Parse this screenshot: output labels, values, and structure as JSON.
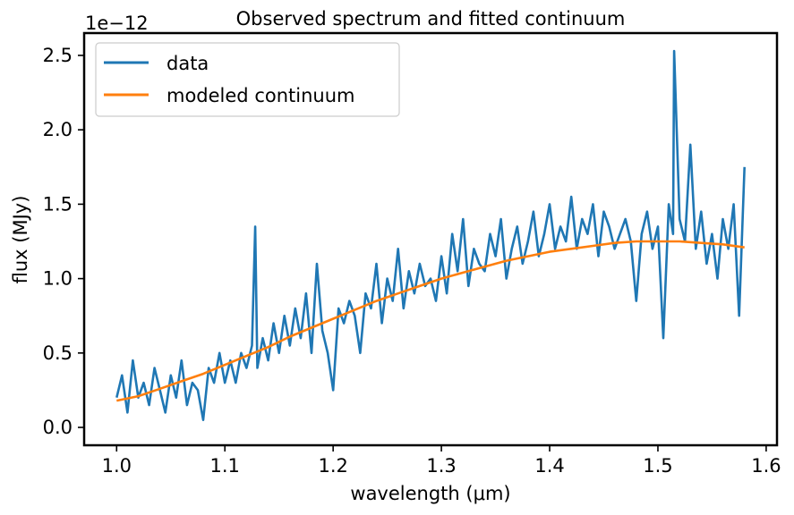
{
  "chart_data": {
    "type": "line",
    "title": "Observed spectrum and fitted continuum",
    "xlabel": "wavelength (μm)",
    "ylabel": "flux (MJy)",
    "y_offset_text": "1e−12",
    "y_scale_factor": 1e-12,
    "xlim": [
      0.97,
      1.61
    ],
    "ylim": [
      -0.12,
      2.65
    ],
    "x_ticks": [
      1.0,
      1.1,
      1.2,
      1.3,
      1.4,
      1.5,
      1.6
    ],
    "x_tick_labels": [
      "1.0",
      "1.1",
      "1.2",
      "1.3",
      "1.4",
      "1.5",
      "1.6"
    ],
    "y_ticks": [
      0.0,
      0.5,
      1.0,
      1.5,
      2.0,
      2.5
    ],
    "y_tick_labels": [
      "0.0",
      "0.5",
      "1.0",
      "1.5",
      "2.0",
      "2.5"
    ],
    "grid": false,
    "legend_position": "top-left",
    "series": [
      {
        "name": "data",
        "color": "#1f77b4",
        "x": [
          1.0,
          1.005,
          1.01,
          1.015,
          1.02,
          1.025,
          1.03,
          1.035,
          1.04,
          1.045,
          1.05,
          1.055,
          1.06,
          1.065,
          1.07,
          1.075,
          1.08,
          1.085,
          1.09,
          1.095,
          1.1,
          1.105,
          1.11,
          1.115,
          1.12,
          1.125,
          1.128,
          1.13,
          1.135,
          1.14,
          1.145,
          1.15,
          1.155,
          1.16,
          1.165,
          1.17,
          1.175,
          1.18,
          1.185,
          1.19,
          1.195,
          1.2,
          1.205,
          1.21,
          1.215,
          1.22,
          1.225,
          1.23,
          1.235,
          1.24,
          1.245,
          1.25,
          1.255,
          1.26,
          1.265,
          1.27,
          1.275,
          1.28,
          1.285,
          1.29,
          1.295,
          1.3,
          1.305,
          1.31,
          1.315,
          1.32,
          1.325,
          1.33,
          1.335,
          1.34,
          1.345,
          1.35,
          1.355,
          1.36,
          1.365,
          1.37,
          1.375,
          1.38,
          1.385,
          1.39,
          1.395,
          1.4,
          1.405,
          1.41,
          1.415,
          1.42,
          1.425,
          1.43,
          1.435,
          1.44,
          1.445,
          1.45,
          1.455,
          1.46,
          1.465,
          1.47,
          1.475,
          1.48,
          1.485,
          1.49,
          1.495,
          1.5,
          1.505,
          1.51,
          1.514,
          1.515,
          1.52,
          1.525,
          1.53,
          1.535,
          1.54,
          1.545,
          1.55,
          1.555,
          1.56,
          1.565,
          1.57,
          1.575,
          1.58
        ],
        "values": [
          0.2,
          0.35,
          0.1,
          0.45,
          0.2,
          0.3,
          0.15,
          0.4,
          0.25,
          0.1,
          0.35,
          0.2,
          0.45,
          0.15,
          0.3,
          0.25,
          0.05,
          0.4,
          0.3,
          0.5,
          0.3,
          0.45,
          0.3,
          0.5,
          0.4,
          0.55,
          1.35,
          0.4,
          0.6,
          0.45,
          0.7,
          0.5,
          0.75,
          0.55,
          0.8,
          0.6,
          0.9,
          0.5,
          1.1,
          0.65,
          0.5,
          0.25,
          0.8,
          0.7,
          0.85,
          0.75,
          0.5,
          0.9,
          0.8,
          1.1,
          0.7,
          1.0,
          0.85,
          1.2,
          0.8,
          1.05,
          0.9,
          1.1,
          0.95,
          1.0,
          0.85,
          1.15,
          0.9,
          1.3,
          1.05,
          1.4,
          0.95,
          1.2,
          1.1,
          1.05,
          1.3,
          1.15,
          1.4,
          1.0,
          1.2,
          1.35,
          1.1,
          1.25,
          1.45,
          1.15,
          1.3,
          1.5,
          1.2,
          1.35,
          1.25,
          1.55,
          1.2,
          1.4,
          1.3,
          1.5,
          1.15,
          1.45,
          1.35,
          1.2,
          1.3,
          1.4,
          1.25,
          0.85,
          1.3,
          1.45,
          1.2,
          1.35,
          0.6,
          1.5,
          1.3,
          2.53,
          1.4,
          1.25,
          1.9,
          1.2,
          1.45,
          1.1,
          1.3,
          1.0,
          1.4,
          1.2,
          1.5,
          0.75,
          1.75
        ]
      },
      {
        "name": "modeled continuum",
        "color": "#ff7f0e",
        "x": [
          1.0,
          1.02,
          1.04,
          1.06,
          1.08,
          1.1,
          1.12,
          1.14,
          1.16,
          1.18,
          1.2,
          1.22,
          1.24,
          1.26,
          1.28,
          1.3,
          1.32,
          1.34,
          1.36,
          1.38,
          1.4,
          1.42,
          1.44,
          1.46,
          1.48,
          1.5,
          1.52,
          1.54,
          1.56,
          1.58
        ],
        "values": [
          0.18,
          0.21,
          0.26,
          0.31,
          0.36,
          0.42,
          0.48,
          0.54,
          0.61,
          0.67,
          0.73,
          0.79,
          0.85,
          0.9,
          0.95,
          1.0,
          1.04,
          1.08,
          1.12,
          1.15,
          1.18,
          1.2,
          1.22,
          1.24,
          1.25,
          1.25,
          1.25,
          1.24,
          1.23,
          1.21
        ]
      }
    ]
  }
}
